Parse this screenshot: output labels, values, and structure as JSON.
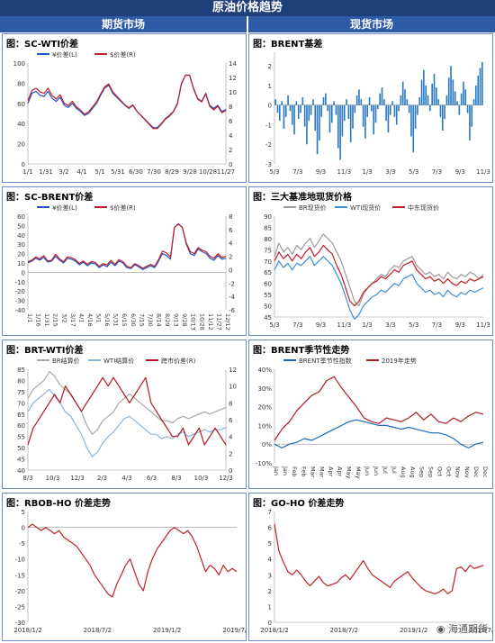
{
  "header": {
    "title": "原油价格趋势",
    "futures": "期货市场",
    "spot": "现货市场"
  },
  "watermark": "海通期货",
  "chart_data": [
    {
      "id": "c1",
      "type": "line",
      "title": "图：SC-WTI价差",
      "series": [
        {
          "name": "¥价差(L)",
          "color": "#2255c4",
          "axis": "L",
          "values": [
            60,
            70,
            72,
            68,
            67,
            72,
            65,
            62,
            66,
            58,
            56,
            60,
            55,
            52,
            48,
            50,
            55,
            60,
            68,
            75,
            78,
            70,
            66,
            62,
            58,
            55,
            58,
            52,
            48,
            44,
            40,
            36,
            36,
            40,
            45,
            48,
            52,
            60,
            80,
            88,
            88,
            75,
            65,
            62,
            70,
            58,
            55,
            58,
            52,
            54
          ]
        },
        {
          "name": "$价差(R)",
          "color": "#c0202a",
          "axis": "R",
          "values": [
            8.8,
            10.2,
            10.5,
            10,
            9.8,
            10.5,
            9.5,
            9,
            9.6,
            8.4,
            8.1,
            8.7,
            7.9,
            7.5,
            6.9,
            7.2,
            7.9,
            8.6,
            9.7,
            10.7,
            11.1,
            10,
            9.4,
            8.8,
            8.2,
            7.8,
            8.2,
            7.3,
            6.7,
            6.1,
            5.5,
            4.9,
            4.9,
            5.5,
            6.2,
            6.6,
            7.2,
            8.3,
            11.1,
            12.3,
            12.3,
            10.4,
            9,
            8.6,
            9.7,
            8,
            7.5,
            8,
            7.1,
            7.4
          ]
        }
      ],
      "x_labels": [
        "1/1",
        "1/31",
        "3/2",
        "4/1",
        "5/1",
        "5/31",
        "6/30",
        "7/30",
        "8/29",
        "9/28",
        "10/28",
        "11/27"
      ],
      "y_left": {
        "ticks": [
          0,
          20,
          40,
          60,
          80,
          100
        ],
        "range": [
          0,
          100
        ]
      },
      "y_right": {
        "ticks": [
          0,
          2,
          4,
          6,
          8,
          10,
          12,
          14
        ],
        "range": [
          0,
          14
        ]
      },
      "legend": "top"
    },
    {
      "id": "c2",
      "type": "bar",
      "title": "图：BRENT基差",
      "series": [
        {
          "name": "BRENT基差",
          "color": "#2a78c2",
          "values": [
            0.3,
            -0.4,
            -0.8,
            0.2,
            -1.2,
            -0.6,
            0.5,
            -0.3,
            -1,
            -1.5,
            0.2,
            -0.7,
            -0.4,
            0.4,
            -1.1,
            -2,
            -0.8,
            -0.5,
            0.3,
            -1.3,
            -2.5,
            -1.8,
            -0.6,
            0.4,
            0.6,
            -0.3,
            -1.4,
            -0.9,
            0.2,
            -0.5,
            -2.2,
            -2.8,
            -1.6,
            -0.8,
            0.3,
            -0.7,
            -1.9,
            -1.2,
            -0.4,
            0.5,
            0.8,
            0.3,
            -1.1,
            -1.7,
            -0.6,
            0.4,
            -0.3,
            -1.5,
            -0.9,
            -0.2,
            0.6,
            0.9,
            0.3,
            -0.8,
            -1.4,
            -0.5,
            0.2,
            -0.6,
            -1,
            -0.3,
            0.5,
            1.2,
            0.8,
            0.3,
            -0.4,
            -1.6,
            -2.4,
            -1.2,
            -0.5,
            0.4,
            1.3,
            1.8,
            1,
            0.5,
            -0.3,
            1.1,
            1.6,
            0.9,
            0.3,
            -0.6,
            -1.3,
            -0.7,
            0.5,
            1.4,
            2,
            1.3,
            0.7,
            0.2,
            -0.5,
            0.6,
            1.2,
            0.8,
            -0.4,
            -1.8,
            -1.1,
            0.3,
            1,
            1.5,
            1.9,
            2.2
          ]
        }
      ],
      "x_labels": [
        "5/3",
        "7/3",
        "9/3",
        "11/3",
        "1/3",
        "3/3",
        "5/3",
        "7/3",
        "9/3",
        "11/3"
      ],
      "y_left": {
        "ticks": [
          -3,
          -2,
          -1,
          0,
          1,
          2
        ],
        "range": [
          -3,
          2.7
        ]
      }
    },
    {
      "id": "c3",
      "type": "line",
      "title": "图：SC-BRENT价差",
      "series": [
        {
          "name": "¥价差(L)",
          "color": "#2255c4",
          "axis": "L",
          "values": [
            10,
            12,
            15,
            13,
            16,
            11,
            12,
            17,
            13,
            10,
            15,
            14,
            12,
            8,
            11,
            7,
            10,
            9,
            5,
            8,
            6,
            11,
            7,
            12,
            10,
            5,
            4,
            8,
            6,
            3,
            5,
            7,
            5,
            12,
            20,
            18,
            14,
            48,
            52,
            48,
            30,
            20,
            18,
            25,
            22,
            20,
            15,
            13,
            18,
            14,
            15
          ]
        },
        {
          "name": "$价差(R)",
          "color": "#c0202a",
          "axis": "R",
          "values": [
            1.2,
            1.4,
            1.9,
            1.6,
            2.1,
            1.3,
            1.4,
            2.3,
            1.6,
            1.2,
            1.9,
            1.8,
            1.5,
            0.9,
            1.3,
            0.8,
            1.2,
            1.1,
            0.5,
            0.9,
            0.7,
            1.4,
            0.8,
            1.5,
            1.2,
            0.5,
            0.3,
            0.9,
            0.6,
            0.2,
            0.5,
            0.8,
            0.5,
            1.5,
            2.8,
            2.5,
            1.9,
            6.3,
            6.8,
            6.3,
            4,
            2.7,
            2.4,
            3.3,
            2.9,
            2.7,
            2,
            1.7,
            2.4,
            1.8,
            2
          ]
        }
      ],
      "x_labels": [
        "1/1",
        "1/16",
        "1/31",
        "2/15",
        "3/2",
        "3/17",
        "4/1",
        "4/16",
        "5/1",
        "5/16",
        "5/31",
        "6/15",
        "6/30",
        "7/15",
        "7/30",
        "8/14",
        "8/29",
        "9/13",
        "9/28",
        "10/13",
        "10/28",
        "11/12",
        "11/27",
        "12/12"
      ],
      "y_left": {
        "ticks": [
          -40,
          -30,
          -20,
          -10,
          0,
          10,
          20,
          30,
          40,
          50,
          60
        ],
        "range": [
          -40,
          60
        ]
      },
      "y_right": {
        "ticks": [
          -6,
          -4,
          -2,
          0,
          2,
          4,
          6,
          8
        ],
        "range": [
          -6,
          8
        ]
      },
      "legend": "top"
    },
    {
      "id": "c4",
      "type": "line",
      "title": "图：三大基准地现货价格",
      "series": [
        {
          "name": "BR现货价",
          "color": "#9a9a9a",
          "values": [
            72,
            78,
            74,
            76,
            73,
            77,
            75,
            78,
            80,
            76,
            79,
            82,
            80,
            78,
            74,
            70,
            64,
            58,
            52,
            50,
            55,
            58,
            60,
            62,
            64,
            63,
            66,
            68,
            67,
            70,
            71,
            72,
            68,
            66,
            64,
            65,
            63,
            64,
            62,
            65,
            63,
            62,
            64,
            63,
            65,
            64,
            62,
            64
          ]
        },
        {
          "name": "WTI现货价",
          "color": "#3a8fd0",
          "values": [
            66,
            70,
            67,
            69,
            66,
            69,
            68,
            70,
            72,
            68,
            70,
            72,
            70,
            68,
            64,
            60,
            54,
            48,
            44,
            46,
            50,
            52,
            54,
            55,
            57,
            56,
            58,
            60,
            59,
            62,
            63,
            64,
            60,
            58,
            56,
            57,
            55,
            56,
            54,
            57,
            55,
            54,
            56,
            55,
            57,
            56,
            57,
            58
          ]
        },
        {
          "name": "中东现货价",
          "color": "#c0202a",
          "values": [
            70,
            74,
            71,
            73,
            70,
            73,
            71,
            74,
            76,
            72,
            74,
            77,
            75,
            73,
            68,
            64,
            58,
            52,
            50,
            52,
            56,
            58,
            60,
            61,
            63,
            62,
            64,
            66,
            65,
            68,
            69,
            70,
            66,
            64,
            62,
            63,
            61,
            62,
            60,
            62,
            60,
            59,
            61,
            60,
            62,
            61,
            62,
            63
          ]
        }
      ],
      "x_labels": [
        "5/3",
        "7/3",
        "9/3",
        "11/3",
        "1/3",
        "3/3",
        "5/3",
        "7/3",
        "9/3",
        "11/3"
      ],
      "y_left": {
        "ticks": [
          45,
          50,
          55,
          60,
          65,
          70,
          75,
          80,
          85,
          90
        ],
        "range": [
          45,
          90
        ]
      },
      "legend": "top"
    },
    {
      "id": "c5",
      "type": "line",
      "title": "图：BRT-WTI价差",
      "series": [
        {
          "name": "BR结算价",
          "color": "#a8a8a8",
          "axis": "L",
          "values": [
            72,
            76,
            78,
            80,
            84,
            82,
            78,
            76,
            74,
            70,
            66,
            60,
            56,
            58,
            62,
            64,
            66,
            70,
            72,
            74,
            72,
            70,
            68,
            66,
            64,
            62,
            62,
            61,
            63,
            64,
            63,
            64,
            65,
            66,
            65,
            66,
            67,
            68
          ]
        },
        {
          "name": "WTI结算价",
          "color": "#8ab4dd",
          "axis": "L",
          "values": [
            66,
            70,
            72,
            74,
            76,
            73,
            70,
            66,
            64,
            60,
            56,
            50,
            46,
            48,
            52,
            55,
            57,
            60,
            63,
            64,
            62,
            60,
            58,
            56,
            56,
            54,
            55,
            54,
            56,
            57,
            55,
            56,
            57,
            58,
            57,
            58,
            58,
            59
          ]
        },
        {
          "name": "跨市价差(R)",
          "color": "#b01a22",
          "axis": "R",
          "values": [
            3,
            5,
            6,
            7,
            8,
            9,
            8,
            10,
            9,
            8,
            7,
            8,
            9,
            10,
            11,
            10,
            11,
            10,
            9,
            8,
            9,
            10,
            11,
            8,
            7,
            6,
            5,
            4,
            4,
            5,
            3,
            4,
            5,
            3,
            4,
            5,
            4,
            3
          ]
        }
      ],
      "x_labels": [
        "8/3",
        "10/3",
        "12/3",
        "2/3",
        "4/3",
        "6/3",
        "8/3",
        "10/3",
        "12/3"
      ],
      "y_left": {
        "ticks": [
          40,
          45,
          50,
          55,
          60,
          65,
          70,
          75,
          80,
          85
        ],
        "range": [
          40,
          85
        ]
      },
      "y_right": {
        "ticks": [
          0,
          2,
          4,
          6,
          8,
          10,
          12
        ],
        "range": [
          0,
          12
        ]
      },
      "legend": "top"
    },
    {
      "id": "c6",
      "type": "line",
      "title": "图：BRENT季节性走势",
      "series": [
        {
          "name": "BRENT季节性指数",
          "color": "#1e6bb8",
          "values": [
            0,
            -2,
            0,
            1,
            3,
            2,
            4,
            6,
            8,
            10,
            12,
            13,
            12,
            11,
            10,
            10,
            9,
            8,
            9,
            8,
            7,
            6,
            6,
            5,
            3,
            0,
            -2,
            0,
            1
          ]
        },
        {
          "name": "2019年走势",
          "color": "#b01a22",
          "values": [
            2,
            8,
            12,
            18,
            22,
            26,
            28,
            34,
            36,
            30,
            25,
            20,
            14,
            12,
            11,
            14,
            13,
            12,
            14,
            17,
            13,
            16,
            12,
            11,
            14,
            12,
            15,
            17,
            16
          ]
        }
      ],
      "x_labels": [
        "Jan",
        "Jan",
        "Feb",
        "Feb",
        "Mar",
        "Mar",
        "Apr",
        "Apr",
        "May",
        "May",
        "Jun",
        "Jun",
        "Jul",
        "Jul",
        "Aug",
        "Aug",
        "Sep",
        "Sep",
        "Oct",
        "Oct",
        "Nov",
        "Nov",
        "Dec",
        "Dec"
      ],
      "y_left": {
        "ticks": [
          -10,
          0,
          10,
          20,
          30,
          40
        ],
        "range": [
          -10,
          40
        ],
        "format": "percent"
      },
      "legend": "top"
    },
    {
      "id": "c7",
      "type": "line",
      "title": "图：RBOB-HO 价差走势",
      "series": [
        {
          "name": "RBOB-HO",
          "color": "#c0202a",
          "values": [
            0,
            1,
            0,
            -1,
            0,
            -1,
            -2,
            -1,
            -3,
            -4,
            -5,
            -6,
            -8,
            -10,
            -12,
            -15,
            -17,
            -19,
            -21,
            -22,
            -18,
            -15,
            -12,
            -10,
            -14,
            -18,
            -20,
            -14,
            -10,
            -7,
            -5,
            -3,
            -1,
            0,
            -1,
            -2,
            -1,
            -3,
            -6,
            -10,
            -14,
            -12,
            -13,
            -15,
            -12,
            -14,
            -13,
            -14
          ]
        }
      ],
      "x_labels": [
        "2018/1/2",
        "2018/7/2",
        "2019/1/2",
        "2019/7/2"
      ],
      "y_left": {
        "ticks": [
          -30,
          -25,
          -20,
          -15,
          -10,
          -5,
          0,
          5
        ],
        "range": [
          -30,
          5
        ]
      }
    },
    {
      "id": "c8",
      "type": "line",
      "title": "图：GO-HO 价差走势",
      "series": [
        {
          "name": "GO-HO",
          "color": "#c0202a",
          "values": [
            6.2,
            4.5,
            3.8,
            3.2,
            3,
            3.3,
            3,
            2.6,
            2.3,
            2.6,
            2.9,
            2.5,
            2.3,
            2.4,
            2.5,
            2.8,
            3,
            2.7,
            3.1,
            3.5,
            3.9,
            3.4,
            3,
            2.8,
            2.6,
            2.4,
            2.2,
            2.6,
            2.8,
            3,
            3.2,
            2.8,
            2.5,
            2.2,
            2,
            1.9,
            1.8,
            1.9,
            2.1,
            1.8,
            2,
            3.4,
            3.5,
            3.2,
            3.6,
            3.4,
            3.5,
            3.6
          ]
        }
      ],
      "x_labels": [
        "2018/1/2",
        "2018/7/2",
        "2019/1/2",
        "2019/7/2"
      ],
      "y_left": {
        "ticks": [
          0,
          1,
          2,
          3,
          4,
          5,
          6,
          7
        ],
        "range": [
          0,
          7
        ]
      }
    }
  ]
}
